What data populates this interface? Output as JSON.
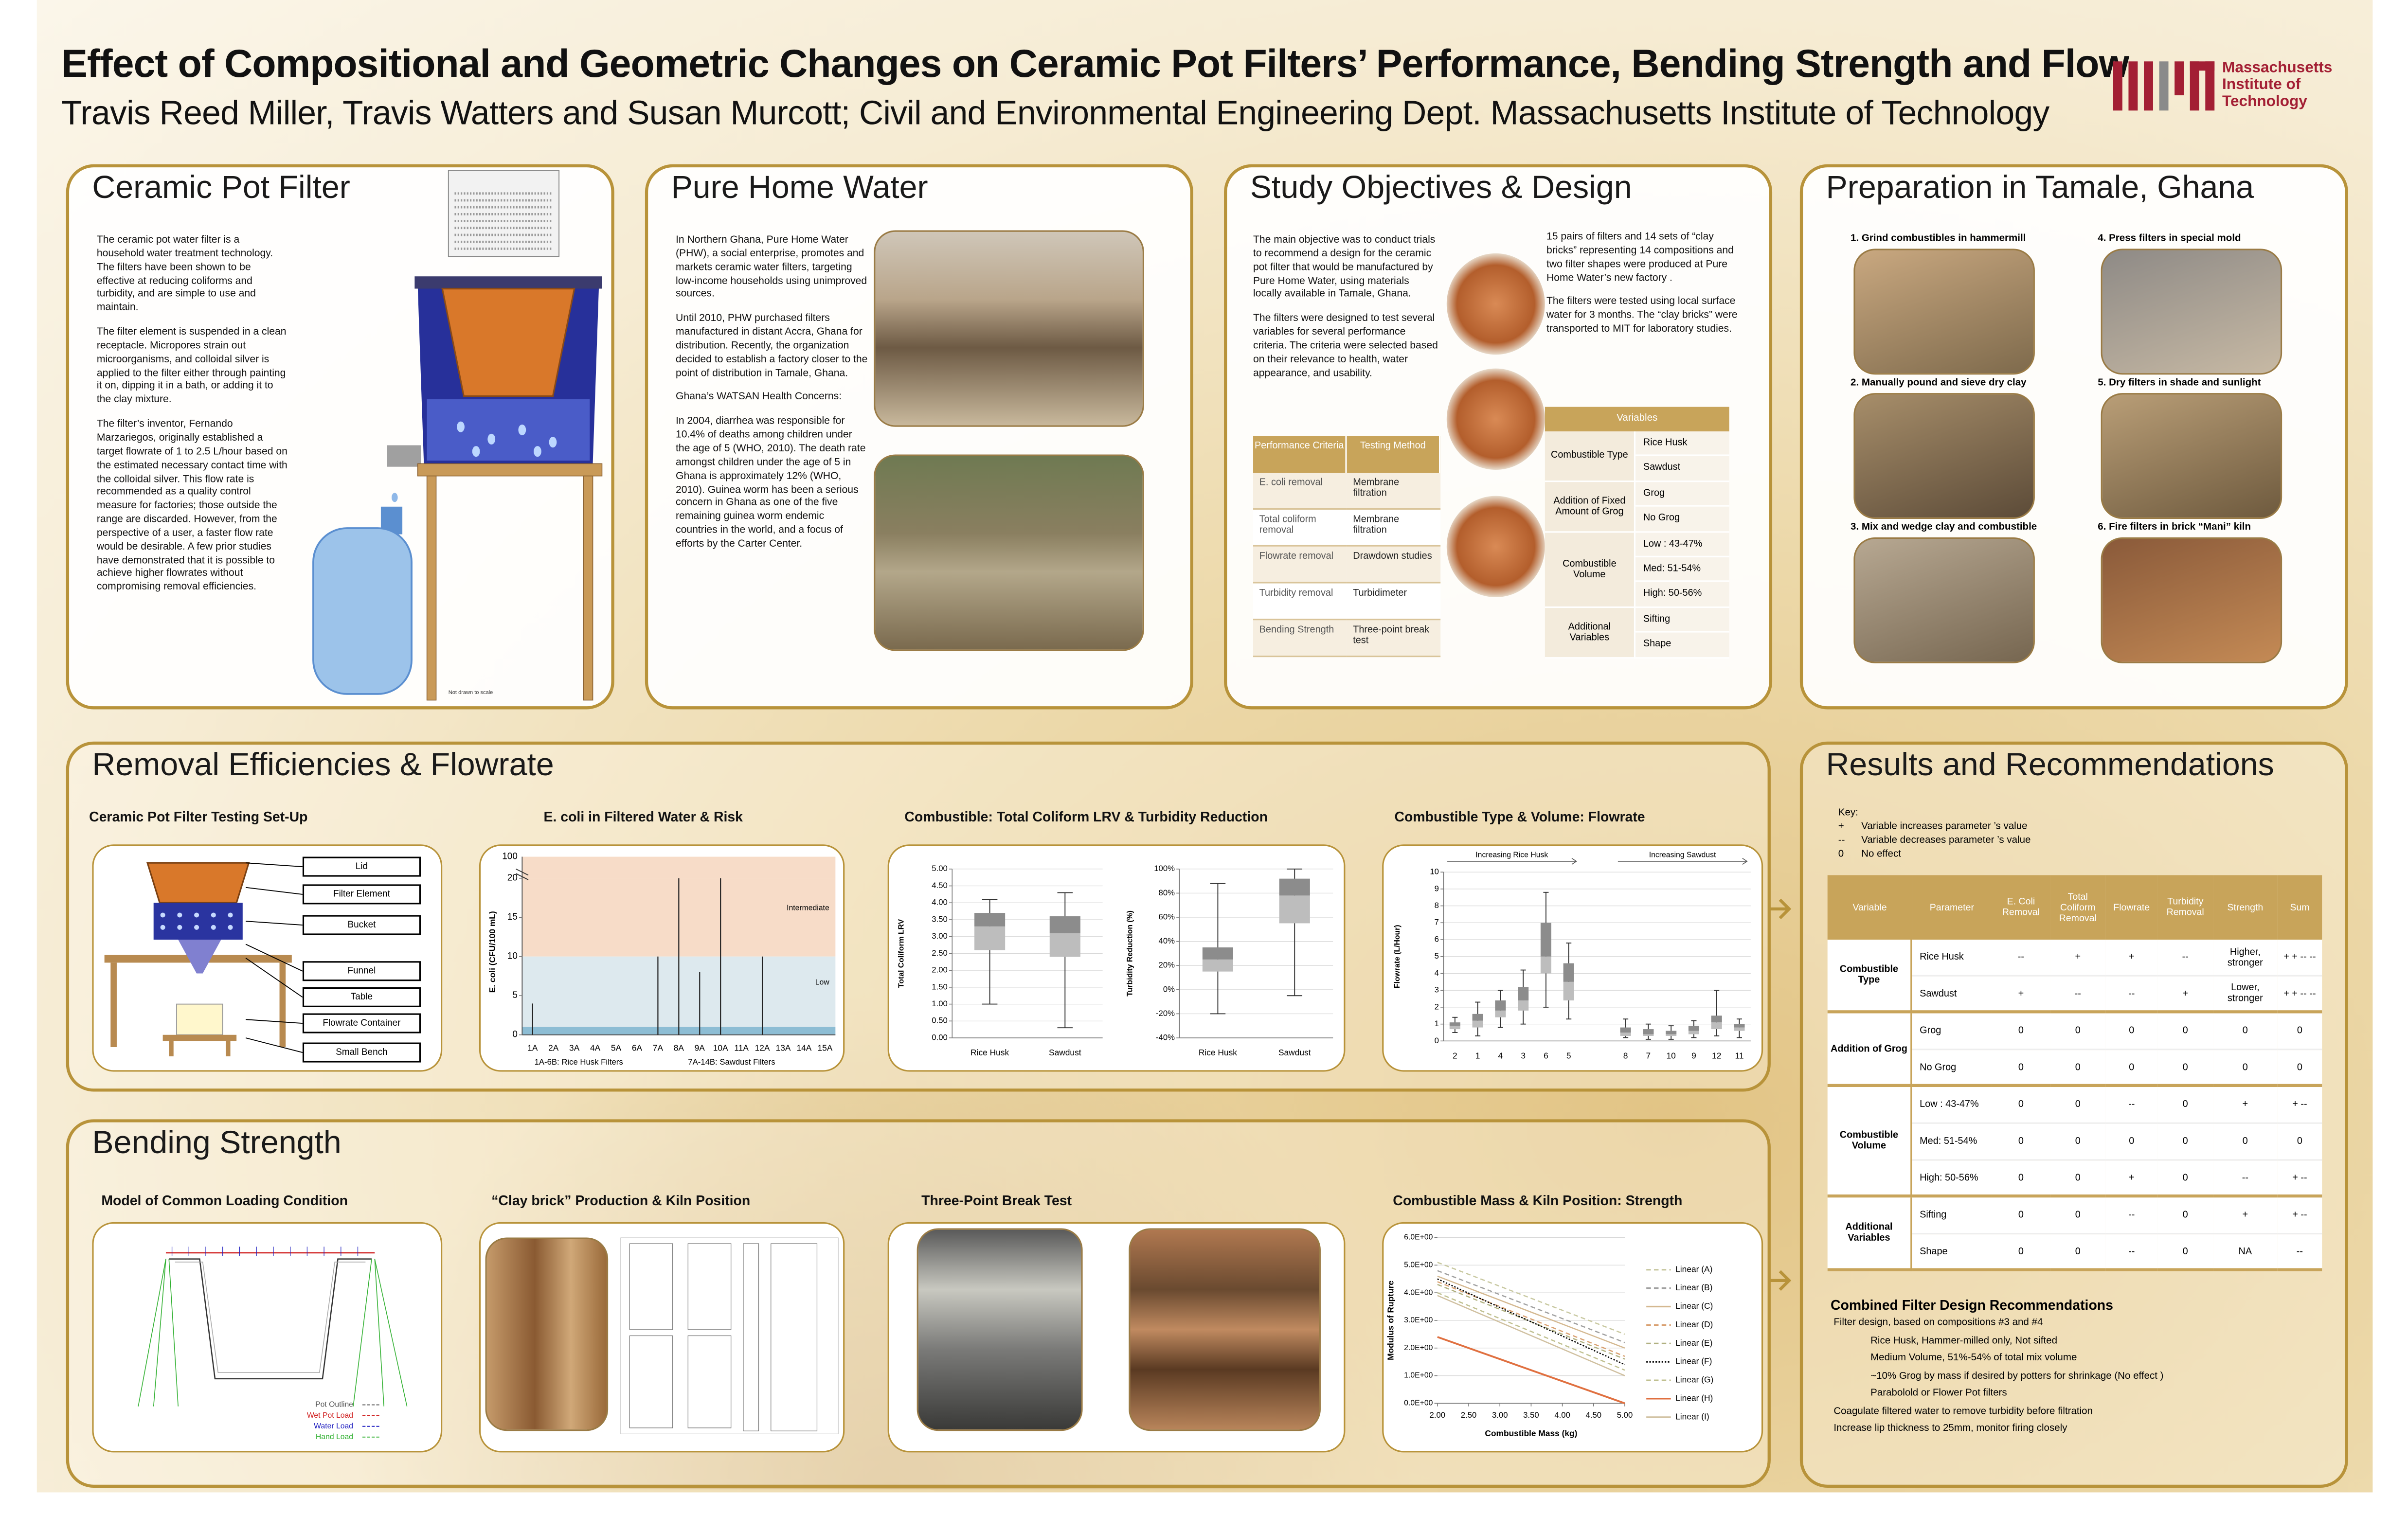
{
  "header": {
    "title": "Effect of Compositional and Geometric Changes on Ceramic Pot Filters’ Performance, Bending Strength and Flow",
    "authors": "Travis Reed Miller, Travis Watters and Susan Murcott; Civil and Environmental Engineering Dept. Massachusetts Institute of Technology",
    "logo": [
      "Massachusetts",
      "Institute of",
      "Technology"
    ]
  },
  "ceramic": {
    "title": "Ceramic Pot Filter",
    "paragraphs": [
      "The ceramic pot water filter is a household water treatment technology. The filters have been shown to be effective at reducing coliforms and turbidity, and are simple to use and maintain.",
      "The filter element is suspended in a clean receptacle. Micropores strain out microorganisms, and colloidal silver is applied to the filter either through painting it on, dipping it in a bath, or adding it to the clay mixture.",
      "The filter’s inventor, Fernando Marzariegos, originally established a target flowrate of 1 to 2.5 L/hour based on the estimated necessary contact time with the colloidal silver. This flow rate is recommended as a quality control measure for factories; those outside the range are discarded. However, from the perspective of a user, a faster flow rate would be desirable. A few prior studies have demonstrated that it is possible to achieve higher flowrates without compromising removal efficiencies."
    ],
    "caption": "Not drawn to scale"
  },
  "phw": {
    "title": "Pure Home Water",
    "paragraphs": [
      "In Northern Ghana, Pure Home Water (PHW), a social enterprise, promotes and markets ceramic water filters, targeting low-income households using unimproved sources.",
      "Until 2010, PHW purchased filters manufactured in distant Accra, Ghana for distribution. Recently, the organization decided to establish a factory closer to the point of distribution in Tamale, Ghana.",
      "Ghana’s WATSAN Health Concerns:",
      "In 2004, diarrhea was responsible for 10.4% of deaths among children under the age of 5 (WHO, 2010). The death rate amongst children under the age of 5 in Ghana is approximately 12% (WHO, 2010). Guinea worm has been a serious concern in Ghana as one of the five remaining guinea worm endemic countries in the world, and a focus of efforts by the Carter Center."
    ]
  },
  "objectives": {
    "title": "Study Objectives & Design",
    "left": [
      "The main objective was to conduct trials to recommend a design for the ceramic pot filter that would be manufactured by Pure Home Water, using materials locally available in Tamale, Ghana.",
      "The filters were  designed to test several variables for  several performance criteria.   The criteria were selected based on their relevance to health, water appearance, and usability."
    ],
    "right": [
      "15 pairs of filters  and 14 sets of “clay bricks” representing 14 compositions and two  filter shapes  were produced at Pure Home Water’s  new factory .",
      "The filters were tested using local surface water for 3 months.  The “clay bricks” were transported to MIT for laboratory studies."
    ],
    "criteria": {
      "headers": [
        "Performance Criteria",
        "Testing Method"
      ],
      "rows": [
        [
          "E.  coli removal",
          "Membrane filtration"
        ],
        [
          "Total coliform removal",
          "Membrane filtration"
        ],
        [
          "Flowrate removal",
          "Drawdown studies"
        ],
        [
          "Turbidity removal",
          "Turbidimeter"
        ],
        [
          "Bending Strength",
          "Three-point break test"
        ]
      ]
    },
    "variables": {
      "title": "Variables",
      "groups": [
        {
          "name": "Combustible Type",
          "items": [
            "Rice Husk",
            "Sawdust"
          ]
        },
        {
          "name": "Addition of Fixed Amount of Grog",
          "items": [
            "Grog",
            "No Grog"
          ]
        },
        {
          "name": "Combustible Volume",
          "items": [
            "Low : 43-47%",
            "Med: 51-54%",
            "High: 50-56%"
          ]
        },
        {
          "name": "Additional Variables",
          "items": [
            "Sifting",
            "Shape"
          ]
        }
      ]
    }
  },
  "prep": {
    "title": "Preparation in Tamale, Ghana",
    "steps": [
      "1. Grind combustibles in hammermill",
      "2. Manually pound and sieve dry clay",
      "3. Mix and wedge clay and combustible",
      "4. Press filters in special mold",
      "5. Dry filters in shade and sunlight",
      "6. Fire filters in brick “Mani” kiln"
    ]
  },
  "removal": {
    "title": "Removal Efficiencies & Flowrate",
    "setup_title": "Ceramic Pot Filter  Testing Set-Up",
    "setup_labels": [
      "Lid",
      "Filter Element",
      "Bucket",
      "Funnel",
      "Table",
      "Flowrate Container",
      "Small Bench"
    ]
  },
  "bending": {
    "title": "Bending Strength",
    "subtitles": [
      "Model of Common Loading Condition",
      "“Clay brick” Production & Kiln Position",
      "Three-Point Break Test"
    ],
    "model_legend": [
      "Pot Outline",
      "Wet Pot Load",
      "Water Load",
      "Hand Load"
    ]
  },
  "chart_data": [
    {
      "type": "bar",
      "title": "E. coli in Filtered Water  & Risk",
      "y_label": "E. coli (CFU/100 mL)",
      "categories": [
        "1A",
        "2A",
        "3A",
        "4A",
        "5A",
        "6A",
        "7A",
        "8A",
        "9A",
        "10A",
        "11A",
        "12A",
        "13A",
        "14A",
        "15A"
      ],
      "values": [
        4,
        0,
        0,
        0,
        0,
        0,
        10,
        20,
        8,
        20,
        0,
        10,
        0,
        0,
        0
      ],
      "color": "#222222",
      "ylim": [
        0,
        20
      ],
      "yticks": [
        0,
        5,
        10,
        15,
        20
      ],
      "y_break_label": 100,
      "zones": [
        {
          "label": "Intermediate",
          "from": 10,
          "to": 20,
          "color": "#f7dcc8"
        },
        {
          "label": "Low",
          "from": 1,
          "to": 10,
          "color": "#dde9ee"
        },
        {
          "from": 0,
          "to": 1,
          "color": "#8dbdd4"
        }
      ],
      "notes": [
        "1A-6B: Rice Husk Filters",
        "7A-14B: Sawdust Filters"
      ]
    },
    {
      "type": "box",
      "title": "Combustible:  Total Coliform LRV & Turbidity Reduction",
      "y_label": "Total Coliform LRV",
      "categories": [
        "Rice Husk",
        "Sawdust"
      ],
      "boxes": [
        {
          "min": 1.0,
          "q1": 2.6,
          "median": 3.3,
          "q3": 3.7,
          "max": 4.1
        },
        {
          "min": 0.3,
          "q1": 2.4,
          "median": 3.1,
          "q3": 3.6,
          "max": 4.3
        }
      ],
      "color_lower": "#bdbdbd",
      "color_upper": "#8c8c8c",
      "ylim": [
        0,
        5
      ],
      "yticks": [
        {
          "value": 0,
          "label": "0.00"
        },
        {
          "value": 0.5,
          "label": "0.50"
        },
        {
          "value": 1,
          "label": "1.00"
        },
        {
          "value": 1.5,
          "label": "1.50"
        },
        {
          "value": 2,
          "label": "2.00"
        },
        {
          "value": 2.5,
          "label": "2.50"
        },
        {
          "value": 3,
          "label": "3.00"
        },
        {
          "value": 3.5,
          "label": "3.50"
        },
        {
          "value": 4,
          "label": "4.00"
        },
        {
          "value": 4.5,
          "label": "4.50"
        },
        {
          "value": 5,
          "label": "5.00"
        }
      ],
      "grid": true
    },
    {
      "type": "box",
      "y_label": "Turbidity Reduction (%)",
      "categories": [
        "Rice Husk",
        "Sawdust"
      ],
      "boxes": [
        {
          "min": -20,
          "q1": 15,
          "median": 25,
          "q3": 35,
          "max": 88
        },
        {
          "min": -5,
          "q1": 55,
          "median": 78,
          "q3": 92,
          "max": 100
        }
      ],
      "color_lower": "#bdbdbd",
      "color_upper": "#8c8c8c",
      "ylim": [
        -40,
        100
      ],
      "yticks": [
        {
          "value": -40,
          "label": "-40%"
        },
        {
          "value": -20,
          "label": "-20%"
        },
        {
          "value": 0,
          "label": "0%"
        },
        {
          "value": 20,
          "label": "20%"
        },
        {
          "value": 40,
          "label": "40%"
        },
        {
          "value": 60,
          "label": "60%"
        },
        {
          "value": 80,
          "label": "80%"
        },
        {
          "value": 100,
          "label": "100%"
        }
      ],
      "grid": true
    },
    {
      "type": "box",
      "title": "Combustible Type & Volume: Flowrate",
      "y_label": "Flowrate (L/Hour)",
      "categories": [
        "2",
        "1",
        "4",
        "3",
        "6",
        "5",
        "8",
        "7",
        "10",
        "9",
        "12",
        "11"
      ],
      "boxes": [
        {
          "min": 0.5,
          "q1": 0.7,
          "median": 0.9,
          "q3": 1.1,
          "max": 1.4
        },
        {
          "min": 0.3,
          "q1": 0.8,
          "median": 1.2,
          "q3": 1.6,
          "max": 2.3
        },
        {
          "min": 0.8,
          "q1": 1.4,
          "median": 1.8,
          "q3": 2.4,
          "max": 3.0
        },
        {
          "min": 1.0,
          "q1": 1.8,
          "median": 2.4,
          "q3": 3.2,
          "max": 4.2
        },
        {
          "min": 2.0,
          "q1": 4.0,
          "median": 5.0,
          "q3": 7.0,
          "max": 8.8
        },
        {
          "min": 1.3,
          "q1": 2.4,
          "median": 3.5,
          "q3": 4.6,
          "max": 5.8
        },
        {
          "min": 0.2,
          "q1": 0.3,
          "median": 0.5,
          "q3": 0.8,
          "max": 1.3
        },
        {
          "min": 0.1,
          "q1": 0.3,
          "median": 0.4,
          "q3": 0.7,
          "max": 1.0
        },
        {
          "min": 0.1,
          "q1": 0.3,
          "median": 0.4,
          "q3": 0.6,
          "max": 0.9
        },
        {
          "min": 0.2,
          "q1": 0.4,
          "median": 0.6,
          "q3": 0.9,
          "max": 1.2
        },
        {
          "min": 0.3,
          "q1": 0.7,
          "median": 1.1,
          "q3": 1.5,
          "max": 3.0
        },
        {
          "min": 0.2,
          "q1": 0.6,
          "median": 0.8,
          "q3": 1.0,
          "max": 1.3
        }
      ],
      "color_lower": "#bdbdbd",
      "color_upper": "#8c8c8c",
      "annotations": [
        "Increasing Rice Husk",
        "Increasing Sawdust"
      ],
      "ylim": [
        0,
        10
      ],
      "yticks": [
        0,
        1,
        2,
        3,
        4,
        5,
        6,
        7,
        8,
        9,
        10
      ],
      "grid": true
    },
    {
      "type": "line",
      "title": "Combustible Mass & Kiln Position: Strength",
      "x_label": "Combustible Mass (kg)",
      "y_label": "Modulus of Rupture",
      "x": [
        2,
        5
      ],
      "xlim": [
        2,
        5
      ],
      "xticks": [
        {
          "value": 2,
          "label": "2.00"
        },
        {
          "value": 2.5,
          "label": "2.50"
        },
        {
          "value": 3,
          "label": "3.00"
        },
        {
          "value": 3.5,
          "label": "3.50"
        },
        {
          "value": 4,
          "label": "4.00"
        },
        {
          "value": 4.5,
          "label": "4.50"
        },
        {
          "value": 5,
          "label": "5.00"
        }
      ],
      "ylim": [
        0,
        6
      ],
      "yticks": [
        {
          "value": 0,
          "label": "0.0E+00"
        },
        {
          "value": 1,
          "label": "1.0E+00"
        },
        {
          "value": 2,
          "label": "2.0E+00"
        },
        {
          "value": 3,
          "label": "3.0E+00"
        },
        {
          "value": 4,
          "label": "4.0E+00"
        },
        {
          "value": 5,
          "label": "5.0E+00"
        },
        {
          "value": 6,
          "label": "6.0E+00"
        }
      ],
      "grid": true,
      "series": [
        {
          "name": "Linear (A)",
          "color": "#c8c8a0",
          "dash": "3 2",
          "values": [
            5.1,
            2.5
          ]
        },
        {
          "name": "Linear (B)",
          "color": "#a0a0a0",
          "dash": "3 2",
          "values": [
            4.8,
            2.2
          ]
        },
        {
          "name": "Linear (C)",
          "color": "#d4b890",
          "dash": "none",
          "values": [
            4.6,
            2.0
          ]
        },
        {
          "name": "Linear (D)",
          "color": "#d9a070",
          "dash": "3 2",
          "values": [
            4.4,
            1.7
          ]
        },
        {
          "name": "Linear (E)",
          "color": "#b0b080",
          "dash": "3 2",
          "values": [
            4.3,
            1.6
          ]
        },
        {
          "name": "Linear (F)",
          "color": "#000000",
          "dash": "1 1",
          "values": [
            4.5,
            1.4
          ]
        },
        {
          "name": "Linear (G)",
          "color": "#c0c090",
          "dash": "3 2",
          "values": [
            4.0,
            1.2
          ]
        },
        {
          "name": "Linear (H)",
          "color": "#e07040",
          "dash": "none",
          "values": [
            2.4,
            0.0
          ]
        },
        {
          "name": "Linear (I)",
          "color": "#d0c0a0",
          "dash": "none",
          "values": [
            3.9,
            1.0
          ]
        }
      ]
    }
  ],
  "results": {
    "title": "Results and Recommendations",
    "key": {
      "title": "Key:",
      "items": [
        {
          "symbol": "+",
          "text": "Variable increases parameter ’s value"
        },
        {
          "symbol": "--",
          "text": "Variable decreases parameter ’s value"
        },
        {
          "symbol": "0",
          "text": "No effect"
        }
      ]
    },
    "table": {
      "headers": [
        "Variable",
        "Parameter",
        "E. Coli Removal",
        "Total Coliform Removal",
        "Flowrate",
        "Turbidity Removal",
        "Strength",
        "Sum"
      ],
      "groups": [
        {
          "name": "Combustible Type",
          "rows": [
            [
              "Rice Husk",
              "--",
              "+",
              "+",
              "--",
              "Higher, stronger",
              "+ + -- --"
            ],
            [
              "Sawdust",
              "+",
              "--",
              "--",
              "+",
              "Lower, stronger",
              "+ + -- --"
            ]
          ]
        },
        {
          "name": "Addition of Grog",
          "rows": [
            [
              "Grog",
              "0",
              "0",
              "0",
              "0",
              "0",
              "0"
            ],
            [
              "No Grog",
              "0",
              "0",
              "0",
              "0",
              "0",
              "0"
            ]
          ]
        },
        {
          "name": "Combustible Volume",
          "rows": [
            [
              "Low : 43-47%",
              "0",
              "0",
              "--",
              "0",
              "+",
              "+ --"
            ],
            [
              "Med: 51-54%",
              "0",
              "0",
              "0",
              "0",
              "0",
              "0"
            ],
            [
              "High: 50-56%",
              "0",
              "0",
              "+",
              "0",
              "--",
              "+ --"
            ]
          ]
        },
        {
          "name": "Additional Variables",
          "rows": [
            [
              "Sifting",
              "0",
              "0",
              "--",
              "0",
              "+",
              "+ --"
            ],
            [
              "Shape",
              "0",
              "0",
              "--",
              "0",
              "NA",
              "--"
            ]
          ]
        }
      ]
    },
    "rec_title": "Combined Filter Design Recommendations",
    "recs": [
      "Filter design, based on compositions #3 and #4",
      "Rice Husk, Hammer-milled only, Not sifted",
      "Medium Volume, 51%-54% of total mix volume",
      "~10% Grog by mass if desired by potters for shrinkage (No effect )",
      "Parabolold or Flower Pot filters",
      "Coagulate filtered water to remove turbidity before filtration",
      "Increase lip thickness to 25mm, monitor firing closely"
    ]
  }
}
